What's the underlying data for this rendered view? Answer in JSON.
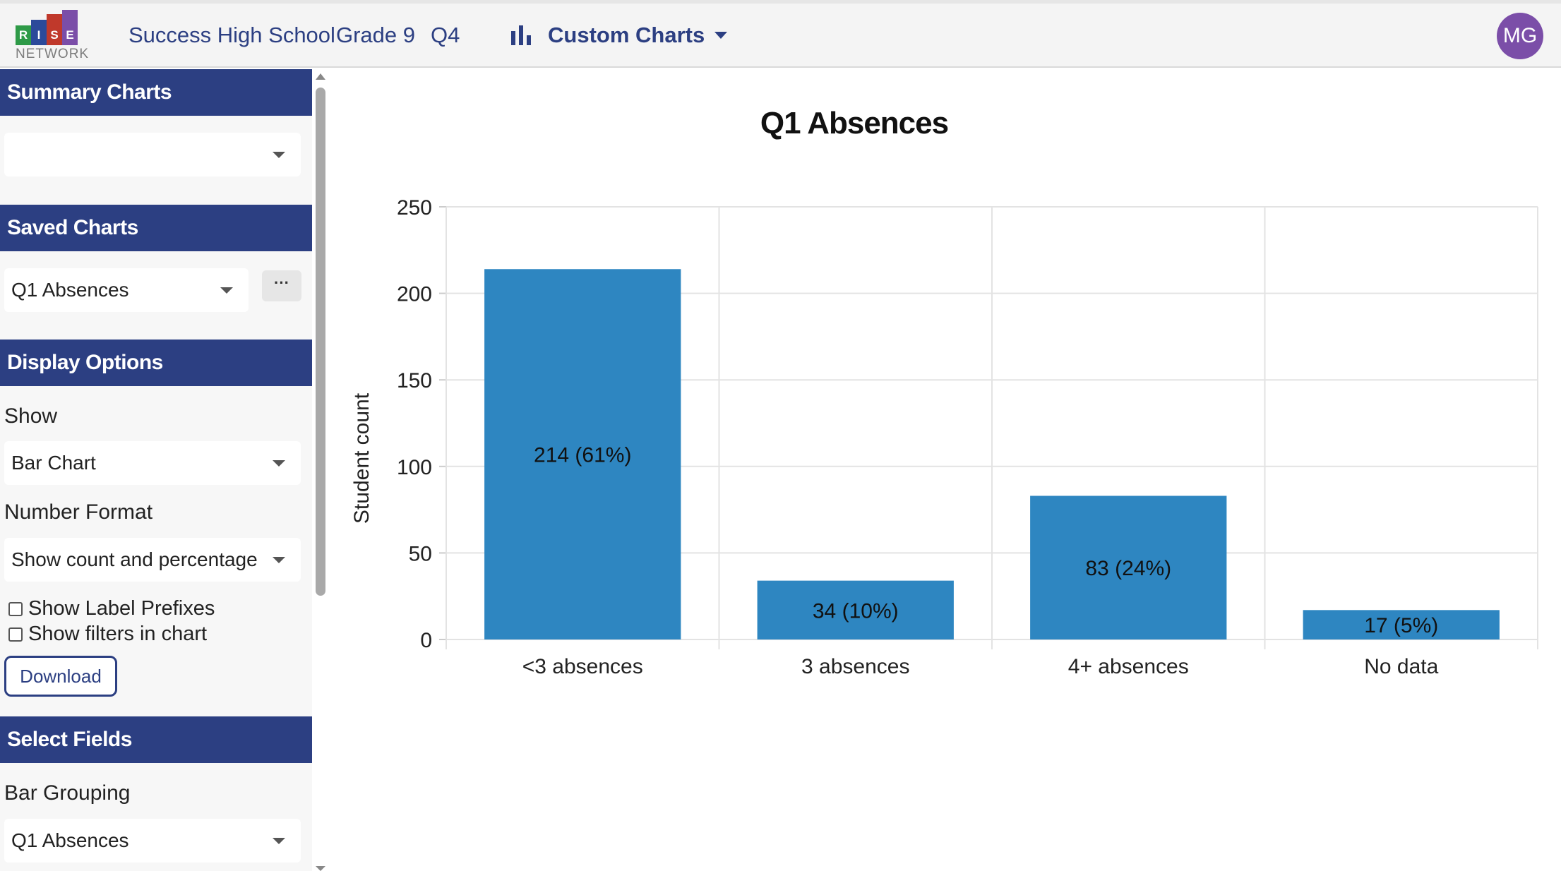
{
  "app": {
    "logo_letters": [
      "R",
      "I",
      "S",
      "E"
    ],
    "logo_subtitle": "NETWORK",
    "logo_colors": [
      "#2e9a47",
      "#2c4a9a",
      "#c0392b",
      "#7b4ea8"
    ]
  },
  "header": {
    "school": "Success High School",
    "grade": "Grade 9",
    "quarter": "Q4",
    "charts_menu": "Custom Charts",
    "charts_menu_icon": "bar-chart-icon",
    "avatar_initials": "MG",
    "accent": "#2c3f82",
    "avatar_color": "#7b4ea8"
  },
  "sidebar": {
    "summary_charts": {
      "title": "Summary Charts",
      "selected": ""
    },
    "saved_charts": {
      "title": "Saved Charts",
      "selected": "Q1 Absences",
      "more_label": "···"
    },
    "display_options": {
      "title": "Display Options",
      "show_label": "Show",
      "show_value": "Bar Chart",
      "number_format_label": "Number Format",
      "number_format_value": "Show count and percentage",
      "checkbox_label_prefixes": "Show Label Prefixes",
      "checkbox_label_prefixes_checked": false,
      "checkbox_filters": "Show filters in chart",
      "checkbox_filters_checked": false,
      "download_label": "Download"
    },
    "select_fields": {
      "title": "Select Fields",
      "bar_grouping_label": "Bar Grouping",
      "bar_grouping_value": "Q1 Absences"
    }
  },
  "chart_data": {
    "type": "bar",
    "title": "Q1 Absences",
    "xlabel": "",
    "ylabel": "Student count",
    "categories": [
      "<3 absences",
      "3 absences",
      "4+ absences",
      "No data"
    ],
    "values": [
      214,
      34,
      83,
      17
    ],
    "data_labels": [
      "214 (61%)",
      "34 (10%)",
      "83 (24%)",
      "17 (5%)"
    ],
    "ylim": [
      0,
      250
    ],
    "yticks": [
      0,
      50,
      100,
      150,
      200,
      250
    ],
    "grid": true,
    "bar_color": "#2e86c1"
  }
}
